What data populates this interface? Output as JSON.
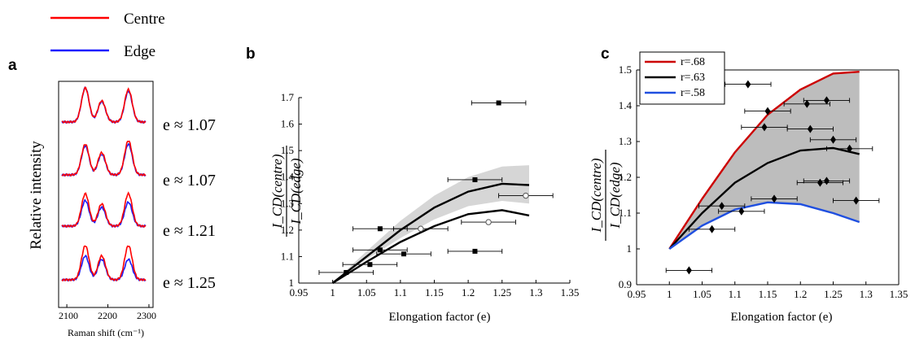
{
  "legend_top": {
    "items": [
      {
        "label": "Centre",
        "color": "#ff0000"
      },
      {
        "label": "Edge",
        "color": "#1a1aff"
      }
    ]
  },
  "panel_a": {
    "letter": "a",
    "ylabel": "Relative intensity",
    "xlabel": "Raman shift (cm⁻¹)",
    "xticks": [
      "2100",
      "2200",
      "2300"
    ],
    "labels": [
      "e ≈ 1.07",
      "e ≈ 1.07",
      "e ≈ 1.21",
      "e ≈ 1.25"
    ]
  },
  "panel_b": {
    "letter": "b",
    "ylabel_num": "I_CD(centre)",
    "ylabel_den": "I_CD(edge)",
    "xlabel": "Elongation factor (e)"
  },
  "panel_c": {
    "letter": "c",
    "ylabel_num": "I_CD(centre)",
    "ylabel_den": "I_CD(edge)",
    "xlabel": "Elongation factor (e)"
  },
  "chart_data": [
    {
      "type": "line",
      "title": "",
      "xlabel": "Raman shift (cm⁻¹)",
      "ylabel": "Relative intensity",
      "xlim": [
        2080,
        2310
      ],
      "xticks": [
        2100,
        2200,
        2300
      ],
      "series": [
        {
          "name": "Centre",
          "color": "#ff0000"
        },
        {
          "name": "Edge",
          "color": "#1a1aff"
        }
      ],
      "traces": [
        {
          "label": "e ≈ 1.07",
          "peaks": [
            2145,
            2185,
            2250
          ],
          "centre": [
            1.0,
            0.62,
            0.95
          ],
          "edge": [
            1.0,
            0.6,
            0.9
          ]
        },
        {
          "label": "e ≈ 1.07",
          "peaks": [
            2145,
            2185,
            2250
          ],
          "centre": [
            0.9,
            0.65,
            1.0
          ],
          "edge": [
            0.85,
            0.6,
            0.9
          ]
        },
        {
          "label": "e ≈ 1.21",
          "peaks": [
            2145,
            2185,
            2250
          ],
          "centre": [
            0.95,
            0.65,
            0.95
          ],
          "edge": [
            0.75,
            0.55,
            0.7
          ]
        },
        {
          "label": "e ≈ 1.25",
          "peaks": [
            2145,
            2185,
            2250
          ],
          "centre": [
            1.0,
            0.7,
            1.0
          ],
          "edge": [
            0.7,
            0.6,
            0.6
          ]
        }
      ]
    },
    {
      "type": "scatter",
      "title": "",
      "xlabel": "Elongation factor (e)",
      "ylabel": "I_CD(centre) / I_CD(edge)",
      "xlim": [
        0.95,
        1.35
      ],
      "ylim": [
        1.0,
        1.7
      ],
      "xticks": [
        "0.95",
        "1",
        "1.05",
        "1.1",
        "1.15",
        "1.2",
        "1.25",
        "1.3",
        "1.35"
      ],
      "yticks": [
        "1",
        "1.1",
        "1.2",
        "1.3",
        "1.4",
        "1.5",
        "1.6",
        "1.7"
      ],
      "series": [
        {
          "marker": "filled-square",
          "points": [
            {
              "x": 1.245,
              "y": 1.68,
              "xerr": 0.04
            },
            {
              "x": 1.21,
              "y": 1.39,
              "xerr": 0.04
            },
            {
              "x": 1.07,
              "y": 1.205,
              "xerr": 0.04
            },
            {
              "x": 1.07,
              "y": 1.125,
              "xerr": 0.04
            },
            {
              "x": 1.105,
              "y": 1.11,
              "xerr": 0.04
            },
            {
              "x": 1.055,
              "y": 1.07,
              "xerr": 0.04
            },
            {
              "x": 1.02,
              "y": 1.04,
              "xerr": 0.04
            },
            {
              "x": 1.21,
              "y": 1.12,
              "xerr": 0.04
            }
          ]
        },
        {
          "marker": "open-circle",
          "points": [
            {
              "x": 1.13,
              "y": 1.205,
              "xerr": 0.04
            },
            {
              "x": 1.23,
              "y": 1.23,
              "xerr": 0.04
            },
            {
              "x": 1.285,
              "y": 1.33,
              "xerr": 0.04
            }
          ]
        }
      ],
      "curves": [
        {
          "points": [
            [
              1.0,
              1.0
            ],
            [
              1.05,
              1.1
            ],
            [
              1.1,
              1.2
            ],
            [
              1.15,
              1.285
            ],
            [
              1.2,
              1.345
            ],
            [
              1.25,
              1.375
            ],
            [
              1.29,
              1.37
            ]
          ]
        },
        {
          "points": [
            [
              1.0,
              1.0
            ],
            [
              1.05,
              1.08
            ],
            [
              1.1,
              1.155
            ],
            [
              1.15,
              1.215
            ],
            [
              1.2,
              1.26
            ],
            [
              1.25,
              1.275
            ],
            [
              1.29,
              1.255
            ]
          ]
        }
      ],
      "band": {
        "upper": [
          [
            1.0,
            1.0
          ],
          [
            1.05,
            1.12
          ],
          [
            1.1,
            1.235
          ],
          [
            1.15,
            1.33
          ],
          [
            1.2,
            1.4
          ],
          [
            1.25,
            1.44
          ],
          [
            1.29,
            1.445
          ]
        ],
        "lower": [
          [
            1.0,
            1.0
          ],
          [
            1.05,
            1.09
          ],
          [
            1.1,
            1.17
          ],
          [
            1.15,
            1.24
          ],
          [
            1.2,
            1.29
          ],
          [
            1.25,
            1.31
          ],
          [
            1.29,
            1.3
          ]
        ]
      }
    },
    {
      "type": "scatter",
      "title": "",
      "xlabel": "Elongation factor (e)",
      "ylabel": "I_CD(centre) / I_CD(edge)",
      "xlim": [
        0.95,
        1.35
      ],
      "ylim": [
        0.9,
        1.5
      ],
      "xticks": [
        "0.95",
        "1",
        "1.05",
        "1.1",
        "1.15",
        "1.2",
        "1.25",
        "1.3",
        "1.35"
      ],
      "yticks": [
        "0.9",
        "1",
        "1.1",
        "1.2",
        "1.3",
        "1.4",
        "1.5"
      ],
      "legend": {
        "position": "top-left",
        "entries": [
          {
            "label": "r=.68",
            "color": "#cc0000"
          },
          {
            "label": "r=.63",
            "color": "#000000"
          },
          {
            "label": "r=.58",
            "color": "#1f4fe0"
          }
        ]
      },
      "curves": [
        {
          "name": "r=.68",
          "color": "#cc0000",
          "points": [
            [
              1.0,
              1.0
            ],
            [
              1.05,
              1.14
            ],
            [
              1.1,
              1.27
            ],
            [
              1.15,
              1.375
            ],
            [
              1.2,
              1.445
            ],
            [
              1.25,
              1.49
            ],
            [
              1.29,
              1.495
            ]
          ]
        },
        {
          "name": "r=.63",
          "color": "#000000",
          "points": [
            [
              1.0,
              1.0
            ],
            [
              1.05,
              1.1
            ],
            [
              1.1,
              1.185
            ],
            [
              1.15,
              1.24
            ],
            [
              1.2,
              1.275
            ],
            [
              1.25,
              1.282
            ],
            [
              1.29,
              1.265
            ]
          ]
        },
        {
          "name": "r=.58",
          "color": "#1f4fe0",
          "points": [
            [
              1.0,
              1.0
            ],
            [
              1.05,
              1.065
            ],
            [
              1.1,
              1.11
            ],
            [
              1.15,
              1.13
            ],
            [
              1.2,
              1.125
            ],
            [
              1.25,
              1.1
            ],
            [
              1.29,
              1.075
            ]
          ]
        }
      ],
      "series": [
        {
          "marker": "filled-diamond",
          "points": [
            {
              "x": 1.12,
              "y": 1.46,
              "xerr": 0.035
            },
            {
              "x": 1.15,
              "y": 1.385,
              "xerr": 0.035
            },
            {
              "x": 1.21,
              "y": 1.405,
              "xerr": 0.035
            },
            {
              "x": 1.24,
              "y": 1.415,
              "xerr": 0.035
            },
            {
              "x": 1.145,
              "y": 1.34,
              "xerr": 0.035
            },
            {
              "x": 1.215,
              "y": 1.335,
              "xerr": 0.035
            },
            {
              "x": 1.25,
              "y": 1.305,
              "xerr": 0.035
            },
            {
              "x": 1.275,
              "y": 1.28,
              "xerr": 0.035
            },
            {
              "x": 1.23,
              "y": 1.185,
              "xerr": 0.035
            },
            {
              "x": 1.24,
              "y": 1.19,
              "xerr": 0.035
            },
            {
              "x": 1.16,
              "y": 1.14,
              "xerr": 0.035
            },
            {
              "x": 1.285,
              "y": 1.135,
              "xerr": 0.035
            },
            {
              "x": 1.08,
              "y": 1.12,
              "xerr": 0.035
            },
            {
              "x": 1.11,
              "y": 1.105,
              "xerr": 0.035
            },
            {
              "x": 1.065,
              "y": 1.055,
              "xerr": 0.035
            },
            {
              "x": 1.03,
              "y": 0.94,
              "xerr": 0.035
            }
          ]
        }
      ]
    }
  ]
}
